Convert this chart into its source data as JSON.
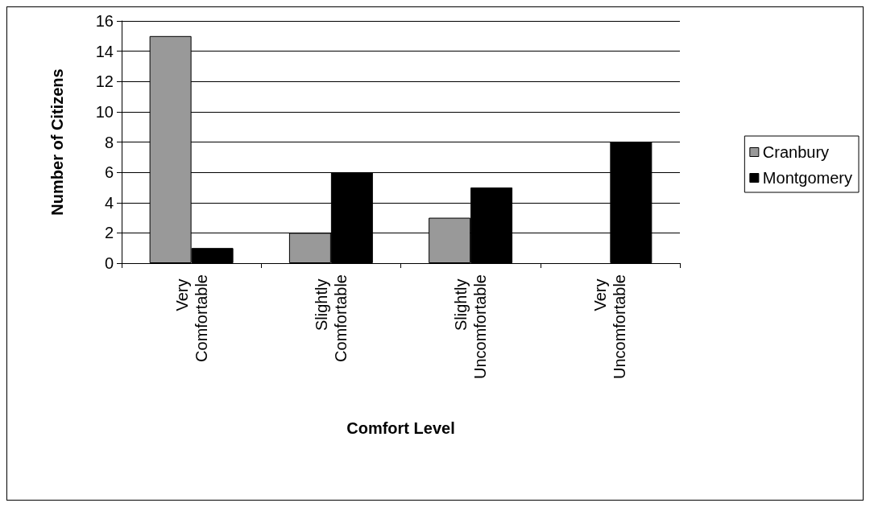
{
  "chart_data": {
    "type": "bar",
    "xlabel": "Comfort Level",
    "ylabel": "Number of Citizens",
    "categories": [
      "Very Comfortable",
      "Slightly Comfortable",
      "Slightly Uncomfortable",
      "Very Uncomfortable"
    ],
    "series": [
      {
        "name": "Cranbury",
        "color": "#999999",
        "values": [
          15,
          2,
          3,
          0
        ]
      },
      {
        "name": "Montgomery",
        "color": "#000000",
        "values": [
          1,
          6,
          5,
          8
        ]
      }
    ],
    "ylim": [
      0,
      16
    ],
    "yticks": [
      0,
      2,
      4,
      6,
      8,
      10,
      12,
      14,
      16
    ],
    "grid": "y",
    "legend": "right"
  }
}
